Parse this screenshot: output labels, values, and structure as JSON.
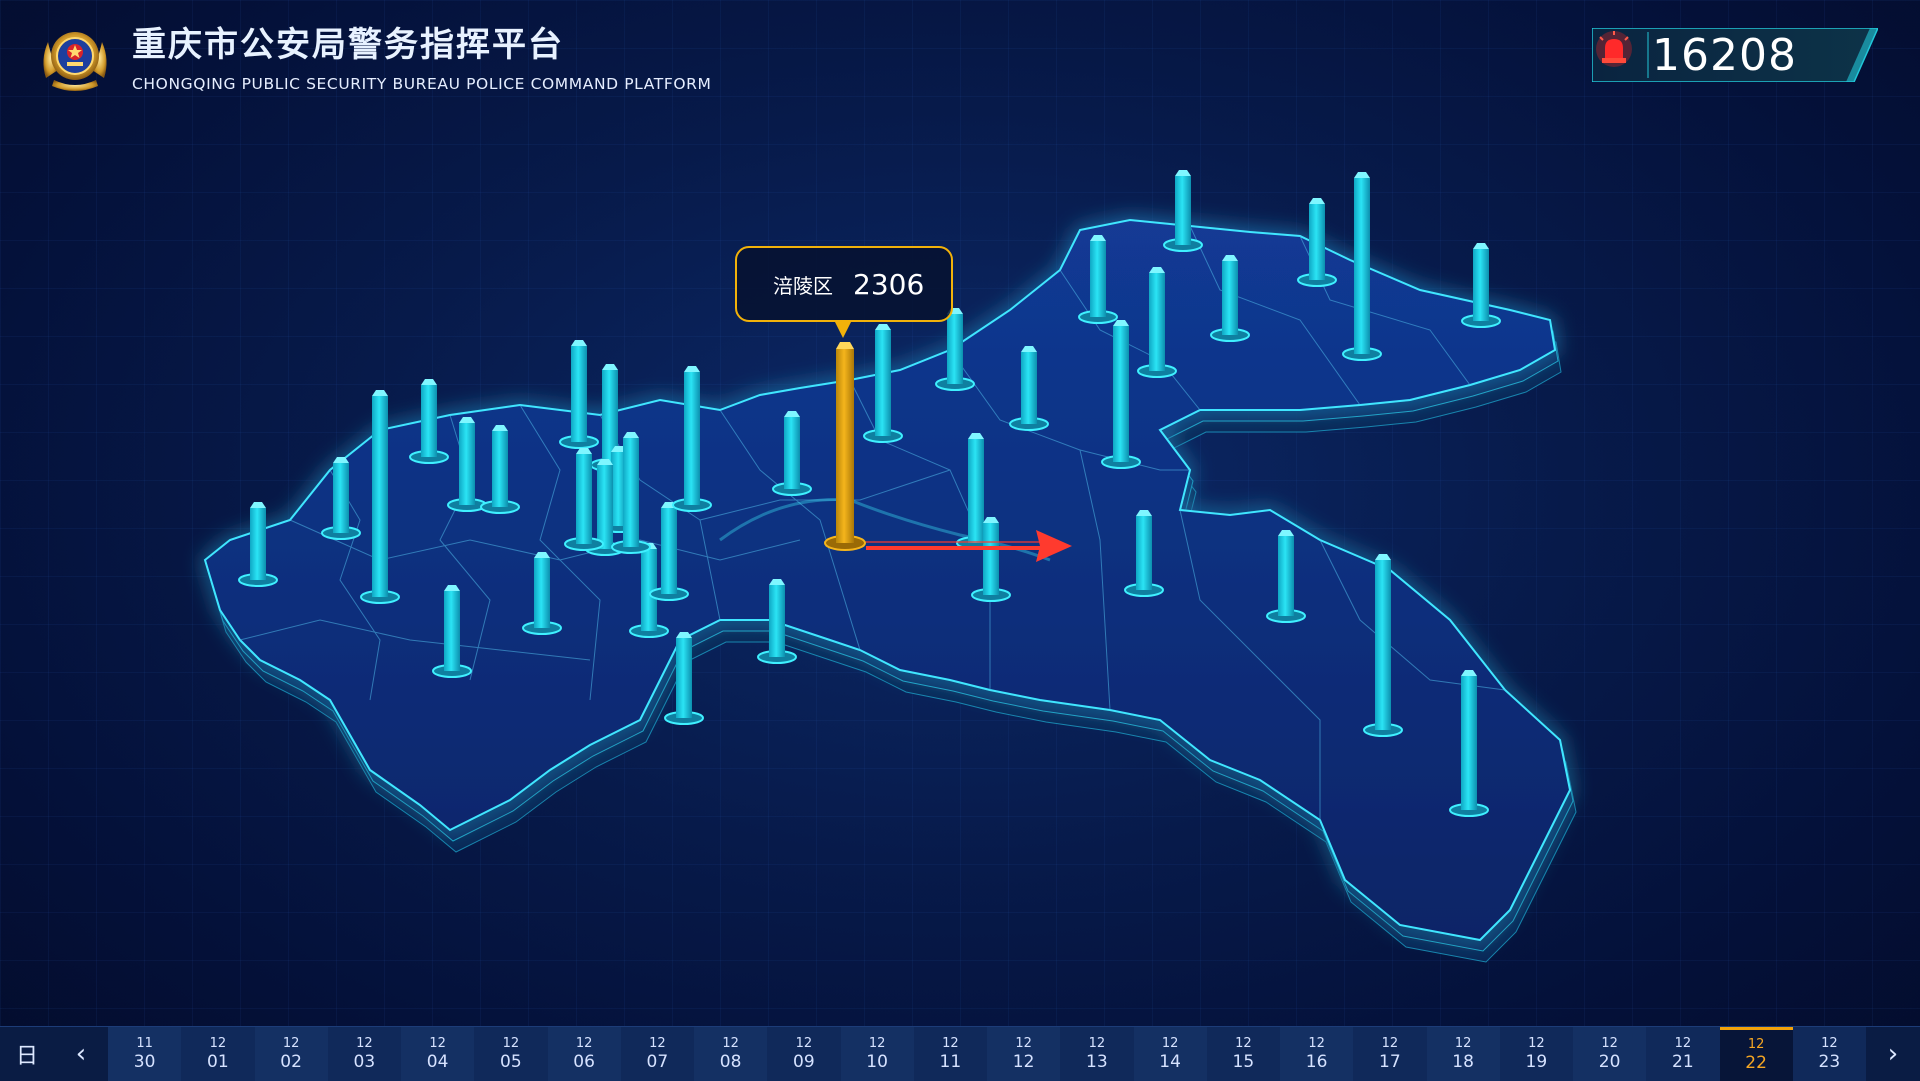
{
  "header": {
    "title_cn": "重庆市公安局警务指挥平台",
    "title_en": "CHONGQING PUBLIC SECURITY BUREAU POLICE COMMAND PLATFORM"
  },
  "counter": {
    "value": "16208",
    "icon": "alarm-siren-icon"
  },
  "tooltip": {
    "district": "涪陵区",
    "value": "2306"
  },
  "colors": {
    "accent": "#f2b20a",
    "bar": "#1fd4e6",
    "map_fill": "#0d2a78",
    "map_edge": "#2ee0ff",
    "arrow": "#ff3a2e"
  },
  "timeline": {
    "mode": "日",
    "prev_icon": "chevron-left-icon",
    "next_icon": "chevron-right-icon",
    "days": [
      {
        "m": "11",
        "d": "30"
      },
      {
        "m": "12",
        "d": "01"
      },
      {
        "m": "12",
        "d": "02"
      },
      {
        "m": "12",
        "d": "03"
      },
      {
        "m": "12",
        "d": "04"
      },
      {
        "m": "12",
        "d": "05"
      },
      {
        "m": "12",
        "d": "06"
      },
      {
        "m": "12",
        "d": "07"
      },
      {
        "m": "12",
        "d": "08"
      },
      {
        "m": "12",
        "d": "09"
      },
      {
        "m": "12",
        "d": "10"
      },
      {
        "m": "12",
        "d": "11"
      },
      {
        "m": "12",
        "d": "12"
      },
      {
        "m": "12",
        "d": "13"
      },
      {
        "m": "12",
        "d": "14"
      },
      {
        "m": "12",
        "d": "15"
      },
      {
        "m": "12",
        "d": "16"
      },
      {
        "m": "12",
        "d": "17"
      },
      {
        "m": "12",
        "d": "18"
      },
      {
        "m": "12",
        "d": "19"
      },
      {
        "m": "12",
        "d": "20"
      },
      {
        "m": "12",
        "d": "21"
      },
      {
        "m": "12",
        "d": "22"
      },
      {
        "m": "12",
        "d": "23"
      }
    ],
    "active_index": 22
  }
}
